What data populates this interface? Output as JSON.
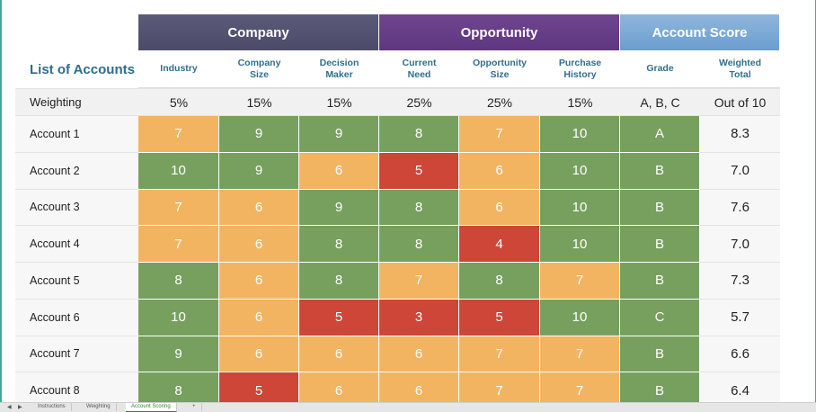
{
  "groups": {
    "company": "Company",
    "opportunity": "Opportunity",
    "score": "Account Score"
  },
  "title": "List of Accounts",
  "columns": [
    {
      "line1": "Industry",
      "line2": ""
    },
    {
      "line1": "Company",
      "line2": "Size"
    },
    {
      "line1": "Decision",
      "line2": "Maker"
    },
    {
      "line1": "Current",
      "line2": "Need"
    },
    {
      "line1": "Opportunity",
      "line2": "Size"
    },
    {
      "line1": "Purchase",
      "line2": "History"
    },
    {
      "line1": "Grade",
      "line2": ""
    },
    {
      "line1": "Weighted",
      "line2": "Total"
    }
  ],
  "weighting": {
    "label": "Weighting",
    "values": [
      "5%",
      "15%",
      "15%",
      "25%",
      "25%",
      "15%",
      "A, B, C",
      "Out of 10"
    ]
  },
  "accounts": [
    {
      "name": "Account 1",
      "scores": [
        "7",
        "9",
        "9",
        "8",
        "7",
        "10"
      ],
      "grade": "A",
      "total": "8.3"
    },
    {
      "name": "Account 2",
      "scores": [
        "10",
        "9",
        "6",
        "5",
        "6",
        "10"
      ],
      "grade": "B",
      "total": "7.0"
    },
    {
      "name": "Account 3",
      "scores": [
        "7",
        "6",
        "9",
        "8",
        "6",
        "10"
      ],
      "grade": "B",
      "total": "7.6"
    },
    {
      "name": "Account 4",
      "scores": [
        "7",
        "6",
        "8",
        "8",
        "4",
        "10"
      ],
      "grade": "B",
      "total": "7.0"
    },
    {
      "name": "Account 5",
      "scores": [
        "8",
        "6",
        "8",
        "7",
        "8",
        "7"
      ],
      "grade": "B",
      "total": "7.3"
    },
    {
      "name": "Account 6",
      "scores": [
        "10",
        "6",
        "5",
        "3",
        "5",
        "10"
      ],
      "grade": "C",
      "total": "5.7"
    },
    {
      "name": "Account 7",
      "scores": [
        "9",
        "6",
        "6",
        "6",
        "7",
        "7"
      ],
      "grade": "B",
      "total": "6.6"
    },
    {
      "name": "Account 8",
      "scores": [
        "8",
        "5",
        "6",
        "6",
        "7",
        "7"
      ],
      "grade": "B",
      "total": "6.4"
    }
  ],
  "colors": {
    "high": "#77a05f",
    "mid": "#f3b462",
    "low": "#cd4638"
  },
  "sheet_tabs": {
    "tabs": [
      "Instructions",
      "Weighting",
      "Account Scoring"
    ],
    "active": "Account Scoring",
    "add": "+"
  }
}
